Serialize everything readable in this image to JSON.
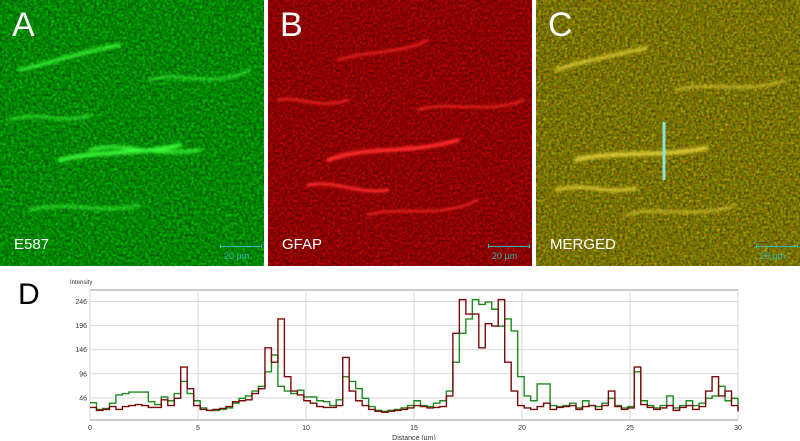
{
  "panels": [
    {
      "letter": "A",
      "caption": "E587",
      "scale": "20 µm",
      "base_color": "#0b3a0b",
      "accent_color": "#3cff3c"
    },
    {
      "letter": "B",
      "caption": "GFAP",
      "scale": "20 µm",
      "base_color": "#3a0606",
      "accent_color": "#ff2a2a"
    },
    {
      "letter": "C",
      "caption": "MERGED",
      "scale": "20 µm",
      "base_color": "#2a2a08",
      "accent_color": "#e6d23a"
    }
  ],
  "profile_line_color": "#8fe3d2",
  "panel_d": {
    "letter": "D"
  },
  "chart_data": {
    "type": "line",
    "ylabel": "Intensity",
    "xlabel": "Distance (µm)",
    "xlim": [
      0,
      30
    ],
    "ylim": [
      0,
      270
    ],
    "x_ticks": [
      0,
      5,
      10,
      15,
      20,
      25,
      30
    ],
    "y_ticks": [
      46,
      96,
      146,
      196,
      246
    ],
    "series": [
      {
        "color": "#1e8a1e",
        "x": [
          0,
          0.3,
          0.6,
          0.9,
          1.2,
          1.5,
          1.8,
          2.1,
          2.4,
          2.7,
          3.0,
          3.3,
          3.6,
          3.9,
          4.2,
          4.5,
          4.8,
          5.1,
          5.4,
          5.7,
          6.0,
          6.3,
          6.6,
          6.9,
          7.2,
          7.5,
          7.8,
          8.1,
          8.4,
          8.7,
          9.0,
          9.3,
          9.6,
          9.9,
          10.2,
          10.5,
          10.8,
          11.1,
          11.4,
          11.7,
          12.0,
          12.3,
          12.6,
          12.9,
          13.2,
          13.5,
          13.8,
          14.1,
          14.4,
          14.7,
          15.0,
          15.3,
          15.6,
          15.9,
          16.2,
          16.5,
          16.8,
          17.1,
          17.4,
          17.7,
          18.0,
          18.3,
          18.6,
          18.9,
          19.2,
          19.5,
          19.8,
          20.1,
          20.4,
          20.7,
          21.0,
          21.3,
          21.6,
          21.9,
          22.2,
          22.5,
          22.8,
          23.1,
          23.4,
          23.7,
          24.0,
          24.3,
          24.6,
          24.9,
          25.2,
          25.5,
          25.8,
          26.1,
          26.4,
          26.7,
          27.0,
          27.3,
          27.6,
          27.9,
          28.2,
          28.5,
          28.8,
          29.1,
          29.4,
          29.7,
          30.0
        ],
        "values": [
          36,
          22,
          24,
          35,
          52,
          55,
          58,
          58,
          58,
          38,
          32,
          48,
          40,
          55,
          80,
          55,
          40,
          25,
          20,
          20,
          22,
          25,
          35,
          45,
          50,
          60,
          70,
          100,
          135,
          70,
          60,
          55,
          62,
          48,
          48,
          40,
          38,
          30,
          42,
          90,
          80,
          65,
          45,
          28,
          20,
          18,
          20,
          22,
          25,
          30,
          40,
          30,
          28,
          35,
          40,
          60,
          120,
          180,
          210,
          250,
          240,
          245,
          230,
          195,
          210,
          185,
          90,
          50,
          40,
          75,
          75,
          30,
          28,
          30,
          35,
          25,
          40,
          30,
          28,
          35,
          45,
          30,
          25,
          28,
          100,
          40,
          30,
          25,
          30,
          50,
          25,
          30,
          40,
          30,
          35,
          45,
          50,
          70,
          40,
          45,
          20
        ]
      },
      {
        "color": "#7a0a0a",
        "x": [
          0,
          0.3,
          0.6,
          0.9,
          1.2,
          1.5,
          1.8,
          2.1,
          2.4,
          2.7,
          3.0,
          3.3,
          3.6,
          3.9,
          4.2,
          4.5,
          4.8,
          5.1,
          5.4,
          5.7,
          6.0,
          6.3,
          6.6,
          6.9,
          7.2,
          7.5,
          7.8,
          8.1,
          8.4,
          8.7,
          9.0,
          9.3,
          9.6,
          9.9,
          10.2,
          10.5,
          10.8,
          11.1,
          11.4,
          11.7,
          12.0,
          12.3,
          12.6,
          12.9,
          13.2,
          13.5,
          13.8,
          14.1,
          14.4,
          14.7,
          15.0,
          15.3,
          15.6,
          15.9,
          16.2,
          16.5,
          16.8,
          17.1,
          17.4,
          17.7,
          18.0,
          18.3,
          18.6,
          18.9,
          19.2,
          19.5,
          19.8,
          20.1,
          20.4,
          20.7,
          21.0,
          21.3,
          21.6,
          21.9,
          22.2,
          22.5,
          22.8,
          23.1,
          23.4,
          23.7,
          24.0,
          24.3,
          24.6,
          24.9,
          25.2,
          25.5,
          25.8,
          26.1,
          26.4,
          26.7,
          27.0,
          27.3,
          27.6,
          27.9,
          28.2,
          28.5,
          28.8,
          29.1,
          29.4,
          29.7,
          30.0
        ],
        "values": [
          26,
          20,
          22,
          28,
          22,
          28,
          30,
          32,
          30,
          26,
          26,
          42,
          30,
          45,
          110,
          65,
          30,
          22,
          20,
          22,
          24,
          28,
          38,
          40,
          42,
          55,
          65,
          150,
          120,
          210,
          90,
          60,
          52,
          40,
          35,
          28,
          26,
          26,
          30,
          130,
          60,
          40,
          30,
          22,
          18,
          16,
          18,
          20,
          22,
          25,
          30,
          28,
          25,
          26,
          28,
          50,
          180,
          250,
          220,
          220,
          150,
          200,
          195,
          250,
          120,
          60,
          30,
          25,
          22,
          28,
          35,
          22,
          26,
          28,
          30,
          22,
          28,
          30,
          22,
          30,
          60,
          28,
          22,
          25,
          110,
          32,
          26,
          22,
          25,
          30,
          20,
          26,
          30,
          22,
          28,
          60,
          90,
          50,
          60,
          30,
          18
        ]
      }
    ]
  }
}
